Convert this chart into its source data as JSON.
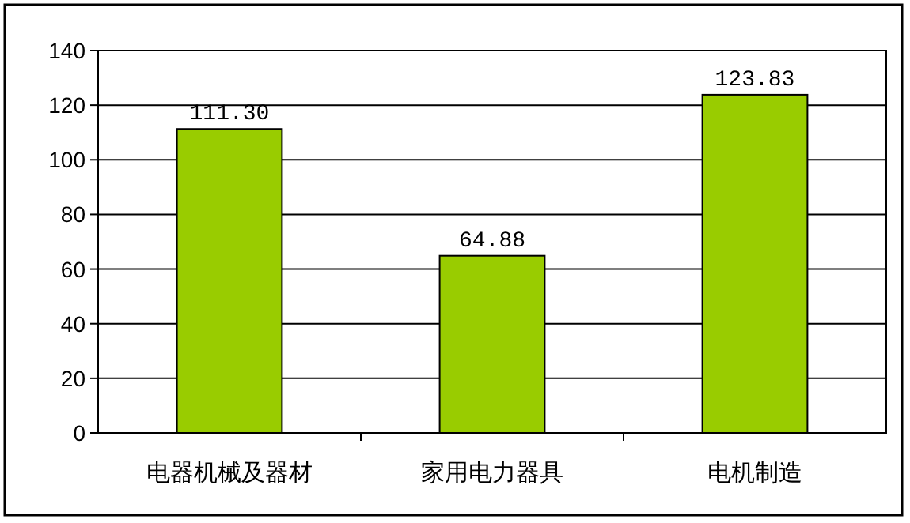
{
  "chart_data": {
    "type": "bar",
    "categories": [
      "电器机械及器材",
      "家用电力器具",
      "电机制造"
    ],
    "values": [
      111.3,
      64.88,
      123.83
    ],
    "value_labels": [
      "111.30",
      "64.88",
      "123.83"
    ],
    "color": "#99cc00",
    "ylim": [
      0,
      140
    ],
    "yticks": [
      0,
      20,
      40,
      60,
      80,
      100,
      120,
      140
    ],
    "grid": "y"
  }
}
